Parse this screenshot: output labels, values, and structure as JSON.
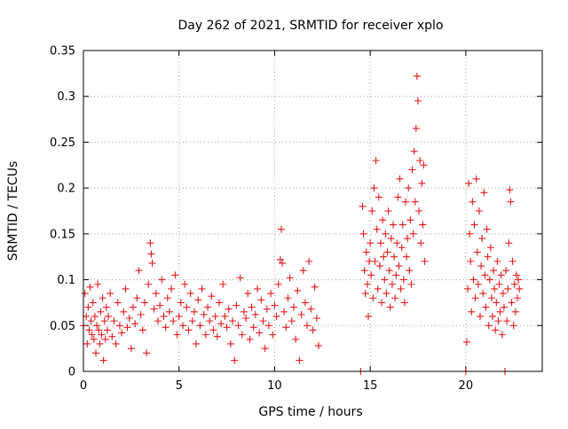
{
  "chart_data": {
    "type": "scatter",
    "title": "Day 262 of 2021, SRMTID for receiver xplo",
    "xlabel": "GPS time / hours",
    "ylabel": "SRMTID / TECUs",
    "xlim": [
      0,
      24
    ],
    "ylim": [
      0,
      0.35
    ],
    "x_ticks": [
      "0",
      "5",
      "10",
      "15",
      "20"
    ],
    "y_ticks": [
      "0",
      "0.05",
      "0.1",
      "0.15",
      "0.2",
      "0.25",
      "0.3",
      "0.35"
    ],
    "grid": true,
    "legend": "none",
    "marker": "+",
    "color": "#e41a1c",
    "series": [
      {
        "points": [
          [
            0.0,
            0.05
          ],
          [
            0.08,
            0.085
          ],
          [
            0.15,
            0.06
          ],
          [
            0.2,
            0.03
          ],
          [
            0.25,
            0.07
          ],
          [
            0.3,
            0.045
          ],
          [
            0.35,
            0.092
          ],
          [
            0.4,
            0.055
          ],
          [
            0.45,
            0.04
          ],
          [
            0.5,
            0.075
          ],
          [
            0.55,
            0.035
          ],
          [
            0.6,
            0.06
          ],
          [
            0.65,
            0.02
          ],
          [
            0.7,
            0.05
          ],
          [
            0.75,
            0.095
          ],
          [
            0.8,
            0.045
          ],
          [
            0.85,
            0.03
          ],
          [
            0.9,
            0.065
          ],
          [
            0.95,
            0.04
          ],
          [
            1.0,
            0.08
          ],
          [
            1.05,
            0.012
          ],
          [
            1.1,
            0.055
          ],
          [
            1.15,
            0.035
          ],
          [
            1.2,
            0.07
          ],
          [
            1.25,
            0.045
          ],
          [
            1.3,
            0.06
          ],
          [
            1.4,
            0.085
          ],
          [
            1.5,
            0.038
          ],
          [
            1.6,
            0.055
          ],
          [
            1.7,
            0.03
          ],
          [
            1.8,
            0.075
          ],
          [
            1.9,
            0.05
          ],
          [
            2.0,
            0.042
          ],
          [
            2.1,
            0.065
          ],
          [
            2.2,
            0.09
          ],
          [
            2.3,
            0.048
          ],
          [
            2.4,
            0.058
          ],
          [
            2.5,
            0.025
          ],
          [
            2.6,
            0.07
          ],
          [
            2.7,
            0.052
          ],
          [
            2.8,
            0.08
          ],
          [
            2.9,
            0.11
          ],
          [
            3.0,
            0.062
          ],
          [
            3.1,
            0.045
          ],
          [
            3.2,
            0.075
          ],
          [
            3.3,
            0.02
          ],
          [
            3.4,
            0.095
          ],
          [
            3.5,
            0.14
          ],
          [
            3.55,
            0.128
          ],
          [
            3.6,
            0.118
          ],
          [
            3.7,
            0.068
          ],
          [
            3.8,
            0.085
          ],
          [
            3.9,
            0.055
          ],
          [
            4.0,
            0.072
          ],
          [
            4.1,
            0.1
          ],
          [
            4.2,
            0.06
          ],
          [
            4.3,
            0.048
          ],
          [
            4.4,
            0.08
          ],
          [
            4.5,
            0.065
          ],
          [
            4.6,
            0.09
          ],
          [
            4.7,
            0.055
          ],
          [
            4.8,
            0.105
          ],
          [
            4.9,
            0.04
          ],
          [
            5.0,
            0.06
          ],
          [
            5.1,
            0.075
          ],
          [
            5.2,
            0.05
          ],
          [
            5.3,
            0.095
          ],
          [
            5.4,
            0.07
          ],
          [
            5.5,
            0.045
          ],
          [
            5.6,
            0.085
          ],
          [
            5.7,
            0.055
          ],
          [
            5.8,
            0.065
          ],
          [
            5.9,
            0.03
          ],
          [
            6.0,
            0.078
          ],
          [
            6.1,
            0.05
          ],
          [
            6.2,
            0.09
          ],
          [
            6.3,
            0.062
          ],
          [
            6.4,
            0.04
          ],
          [
            6.5,
            0.07
          ],
          [
            6.6,
            0.055
          ],
          [
            6.7,
            0.082
          ],
          [
            6.8,
            0.045
          ],
          [
            6.9,
            0.06
          ],
          [
            7.0,
            0.038
          ],
          [
            7.1,
            0.075
          ],
          [
            7.2,
            0.052
          ],
          [
            7.3,
            0.095
          ],
          [
            7.4,
            0.06
          ],
          [
            7.5,
            0.048
          ],
          [
            7.6,
            0.068
          ],
          [
            7.7,
            0.03
          ],
          [
            7.8,
            0.055
          ],
          [
            7.9,
            0.012
          ],
          [
            8.0,
            0.072
          ],
          [
            8.1,
            0.05
          ],
          [
            8.2,
            0.102
          ],
          [
            8.3,
            0.04
          ],
          [
            8.4,
            0.065
          ],
          [
            8.5,
            0.058
          ],
          [
            8.6,
            0.085
          ],
          [
            8.7,
            0.035
          ],
          [
            8.8,
            0.07
          ],
          [
            8.9,
            0.048
          ],
          [
            9.0,
            0.062
          ],
          [
            9.1,
            0.09
          ],
          [
            9.2,
            0.042
          ],
          [
            9.3,
            0.078
          ],
          [
            9.4,
            0.055
          ],
          [
            9.5,
            0.025
          ],
          [
            9.6,
            0.068
          ],
          [
            9.7,
            0.05
          ],
          [
            9.8,
            0.085
          ],
          [
            9.9,
            0.04
          ],
          [
            10.0,
            0.072
          ],
          [
            10.1,
            0.06
          ],
          [
            10.2,
            0.095
          ],
          [
            10.3,
            0.122
          ],
          [
            10.35,
            0.155
          ],
          [
            10.4,
            0.118
          ],
          [
            10.5,
            0.065
          ],
          [
            10.6,
            0.048
          ],
          [
            10.7,
            0.08
          ],
          [
            10.8,
            0.102
          ],
          [
            10.9,
            0.055
          ],
          [
            11.0,
            0.07
          ],
          [
            11.1,
            0.035
          ],
          [
            11.2,
            0.088
          ],
          [
            11.3,
            0.012
          ],
          [
            11.4,
            0.062
          ],
          [
            11.5,
            0.11
          ],
          [
            11.6,
            0.075
          ],
          [
            11.7,
            0.05
          ],
          [
            11.8,
            0.12
          ],
          [
            11.9,
            0.068
          ],
          [
            12.0,
            0.045
          ],
          [
            12.1,
            0.092
          ],
          [
            12.2,
            0.058
          ],
          [
            12.3,
            0.028
          ]
        ]
      },
      {
        "points": [
          [
            14.5,
            0.0
          ],
          [
            14.6,
            0.18
          ],
          [
            14.65,
            0.15
          ],
          [
            14.7,
            0.11
          ],
          [
            14.75,
            0.085
          ],
          [
            14.8,
            0.13
          ],
          [
            14.85,
            0.095
          ],
          [
            14.9,
            0.06
          ],
          [
            14.95,
            0.12
          ],
          [
            15.0,
            0.14
          ],
          [
            15.05,
            0.105
          ],
          [
            15.1,
            0.175
          ],
          [
            15.15,
            0.08
          ],
          [
            15.2,
            0.2
          ],
          [
            15.25,
            0.12
          ],
          [
            15.3,
            0.23
          ],
          [
            15.35,
            0.155
          ],
          [
            15.4,
            0.09
          ],
          [
            15.45,
            0.19
          ],
          [
            15.5,
            0.115
          ],
          [
            15.55,
            0.14
          ],
          [
            15.6,
            0.075
          ],
          [
            15.65,
            0.165
          ],
          [
            15.7,
            0.125
          ],
          [
            15.75,
            0.1
          ],
          [
            15.8,
            0.15
          ],
          [
            15.85,
            0.085
          ],
          [
            15.9,
            0.13
          ],
          [
            15.95,
            0.175
          ],
          [
            16.0,
            0.11
          ],
          [
            16.05,
            0.07
          ],
          [
            16.1,
            0.145
          ],
          [
            16.15,
            0.095
          ],
          [
            16.2,
            0.16
          ],
          [
            16.25,
            0.125
          ],
          [
            16.3,
            0.08
          ],
          [
            16.35,
            0.105
          ],
          [
            16.4,
            0.14
          ],
          [
            16.45,
            0.19
          ],
          [
            16.5,
            0.115
          ],
          [
            16.55,
            0.21
          ],
          [
            16.6,
            0.09
          ],
          [
            16.65,
            0.135
          ],
          [
            16.7,
            0.16
          ],
          [
            16.75,
            0.1
          ],
          [
            16.8,
            0.075
          ],
          [
            16.85,
            0.185
          ],
          [
            16.9,
            0.125
          ],
          [
            16.95,
            0.145
          ],
          [
            17.0,
            0.2
          ],
          [
            17.05,
            0.11
          ],
          [
            17.1,
            0.165
          ],
          [
            17.15,
            0.095
          ],
          [
            17.2,
            0.22
          ],
          [
            17.25,
            0.15
          ],
          [
            17.3,
            0.24
          ],
          [
            17.35,
            0.185
          ],
          [
            17.4,
            0.265
          ],
          [
            17.45,
            0.322
          ],
          [
            17.5,
            0.295
          ],
          [
            17.55,
            0.175
          ],
          [
            17.6,
            0.23
          ],
          [
            17.65,
            0.14
          ],
          [
            17.7,
            0.205
          ],
          [
            17.75,
            0.16
          ],
          [
            17.8,
            0.225
          ],
          [
            17.85,
            0.12
          ]
        ]
      },
      {
        "points": [
          [
            20.0,
            0.0
          ],
          [
            20.05,
            0.032
          ],
          [
            20.1,
            0.09
          ],
          [
            20.15,
            0.205
          ],
          [
            20.2,
            0.15
          ],
          [
            20.25,
            0.12
          ],
          [
            20.3,
            0.065
          ],
          [
            20.35,
            0.185
          ],
          [
            20.4,
            0.1
          ],
          [
            20.45,
            0.16
          ],
          [
            20.5,
            0.08
          ],
          [
            20.55,
            0.21
          ],
          [
            20.6,
            0.13
          ],
          [
            20.65,
            0.095
          ],
          [
            20.7,
            0.175
          ],
          [
            20.75,
            0.06
          ],
          [
            20.8,
            0.115
          ],
          [
            20.85,
            0.145
          ],
          [
            20.9,
            0.085
          ],
          [
            20.95,
            0.195
          ],
          [
            21.0,
            0.105
          ],
          [
            21.05,
            0.07
          ],
          [
            21.1,
            0.155
          ],
          [
            21.15,
            0.125
          ],
          [
            21.2,
            0.05
          ],
          [
            21.25,
            0.1
          ],
          [
            21.3,
            0.135
          ],
          [
            21.35,
            0.08
          ],
          [
            21.4,
            0.06
          ],
          [
            21.45,
            0.11
          ],
          [
            21.5,
            0.09
          ],
          [
            21.55,
            0.045
          ],
          [
            21.6,
            0.075
          ],
          [
            21.65,
            0.12
          ],
          [
            21.7,
            0.055
          ],
          [
            21.75,
            0.095
          ],
          [
            21.8,
            0.065
          ],
          [
            21.85,
            0.105
          ],
          [
            21.9,
            0.04
          ],
          [
            21.95,
            0.085
          ],
          [
            22.0,
            0.07
          ],
          [
            22.05,
            0.0
          ],
          [
            22.1,
            0.11
          ],
          [
            22.15,
            0.055
          ],
          [
            22.2,
            0.09
          ],
          [
            22.25,
            0.14
          ],
          [
            22.3,
            0.198
          ],
          [
            22.35,
            0.185
          ],
          [
            22.4,
            0.075
          ],
          [
            22.45,
            0.12
          ],
          [
            22.5,
            0.05
          ],
          [
            22.55,
            0.095
          ],
          [
            22.6,
            0.065
          ],
          [
            22.65,
            0.105
          ],
          [
            22.7,
            0.08
          ],
          [
            22.75,
            0.1
          ],
          [
            22.8,
            0.09
          ]
        ]
      }
    ]
  }
}
